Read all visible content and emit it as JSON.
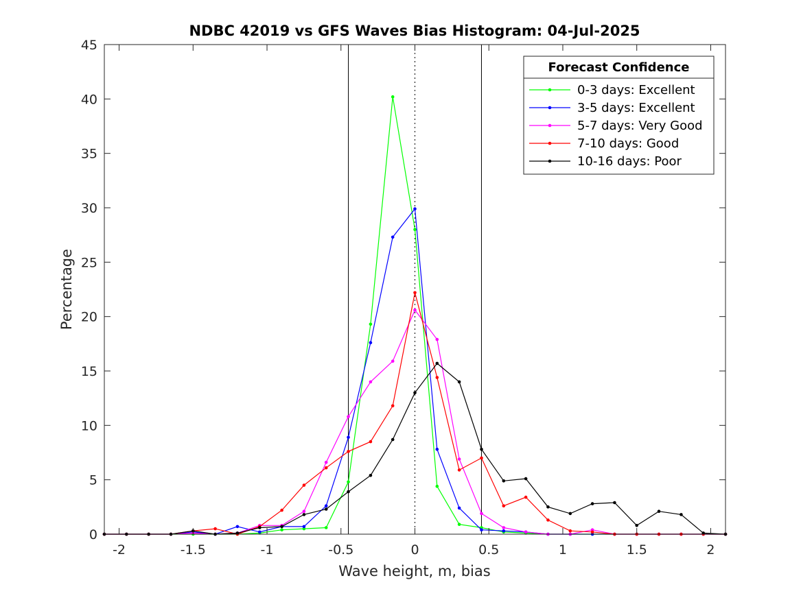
{
  "chart_data": {
    "type": "line",
    "title": "NDBC 42019 vs GFS Waves Bias Histogram: 04-Jul-2025",
    "xlabel": "Wave height, m, bias",
    "ylabel": "Percentage",
    "xlim": [
      -2.1,
      2.1
    ],
    "ylim": [
      0,
      45
    ],
    "xticks": [
      -2,
      -1.5,
      -1,
      -0.5,
      0,
      0.5,
      1,
      1.5,
      2
    ],
    "xtick_labels": [
      "-2",
      "-1.5",
      "-1",
      "-0.5",
      "0",
      "0.5",
      "1",
      "1.5",
      "2"
    ],
    "yticks": [
      0,
      5,
      10,
      15,
      20,
      25,
      30,
      35,
      40,
      45
    ],
    "ytick_labels": [
      "0",
      "5",
      "10",
      "15",
      "20",
      "25",
      "30",
      "35",
      "40",
      "45"
    ],
    "grid": false,
    "reference_lines": [
      {
        "x": -0.45,
        "style": "solid"
      },
      {
        "x": 0,
        "style": "dotted"
      },
      {
        "x": 0.45,
        "style": "solid"
      }
    ],
    "legend": {
      "title": "Forecast Confidence",
      "position": "top-right"
    },
    "x": [
      -2.1,
      -1.95,
      -1.8,
      -1.65,
      -1.5,
      -1.35,
      -1.2,
      -1.05,
      -0.9,
      -0.75,
      -0.6,
      -0.45,
      -0.3,
      -0.15,
      0,
      0.15,
      0.3,
      0.45,
      0.6,
      0.75,
      0.9,
      1.05,
      1.2,
      1.35,
      1.5,
      1.65,
      1.8,
      1.95,
      2.1
    ],
    "series": [
      {
        "name": "0-3 days: Excellent",
        "color": "#00ff00",
        "values": [
          0,
          0,
          0,
          0,
          0,
          0,
          0,
          0.1,
          0.4,
          0.5,
          0.6,
          4.8,
          19.3,
          40.2,
          28.0,
          4.4,
          0.9,
          0.6,
          0.2,
          0.1,
          0,
          0,
          0,
          0,
          0,
          0,
          0,
          0,
          0
        ]
      },
      {
        "name": "3-5 days: Excellent",
        "color": "#0000ff",
        "values": [
          0,
          0,
          0,
          0,
          0.2,
          0,
          0.7,
          0.2,
          0.7,
          0.7,
          2.6,
          8.9,
          17.6,
          27.3,
          29.9,
          7.8,
          2.4,
          0.4,
          0.3,
          0.2,
          0,
          0,
          0,
          0,
          0,
          0,
          0,
          0,
          0
        ]
      },
      {
        "name": "5-7 days: Very Good",
        "color": "#ff00ff",
        "values": [
          0,
          0,
          0,
          0,
          0.1,
          0,
          0.1,
          0.8,
          0.8,
          2.1,
          6.6,
          10.8,
          14.0,
          15.9,
          20.6,
          17.9,
          6.9,
          1.9,
          0.6,
          0.2,
          0,
          0,
          0.4,
          0,
          0,
          0,
          0,
          0,
          0
        ]
      },
      {
        "name": "7-10 days: Good",
        "color": "#ff0000",
        "values": [
          0,
          0,
          0,
          0,
          0.3,
          0.5,
          0,
          0.7,
          2.2,
          4.5,
          6.1,
          7.6,
          8.5,
          11.8,
          22.2,
          14.4,
          5.9,
          7.0,
          2.6,
          3.4,
          1.3,
          0.3,
          0.2,
          0,
          0,
          0,
          0,
          0,
          0
        ]
      },
      {
        "name": "10-16 days: Poor",
        "color": "#000000",
        "values": [
          0,
          0,
          0,
          0,
          0.3,
          0,
          0.1,
          0.6,
          0.7,
          1.8,
          2.3,
          3.9,
          5.4,
          8.7,
          13.0,
          15.7,
          14.0,
          7.8,
          4.9,
          5.1,
          2.5,
          1.9,
          2.8,
          2.9,
          0.8,
          2.1,
          1.8,
          0.1,
          0
        ]
      }
    ]
  }
}
